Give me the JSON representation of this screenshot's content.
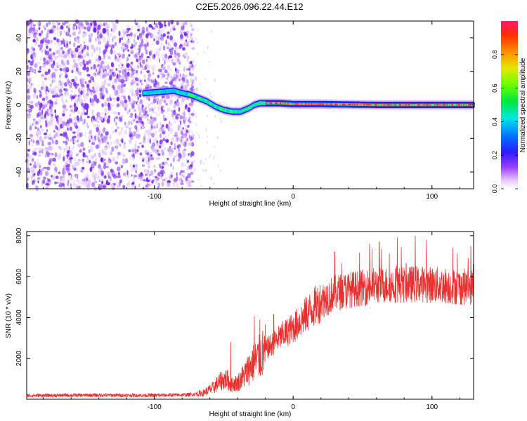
{
  "figure_title": "C2E5.2026.096.22.44.E12",
  "colors": {
    "snr_line": "#e8312f",
    "axis": "#000000"
  },
  "chart_data": [
    {
      "type": "heatmap",
      "title": "C2E5.2026.096.22.44.E12",
      "xlabel": "Height of straight line (km)",
      "ylabel": "Frequency (Hz)",
      "xlim": [
        -192,
        130
      ],
      "ylim": [
        -50,
        50
      ],
      "xticks": [
        -100,
        0,
        100
      ],
      "xtick_labels": [
        "-100",
        "0",
        "100"
      ],
      "yticks": [
        -40,
        -20,
        0,
        20,
        40
      ],
      "ytick_labels": [
        "-40",
        "-20",
        "0",
        "20",
        "40"
      ],
      "noise_region_x": [
        -192,
        -72
      ],
      "signal_track": {
        "x": [
          -108,
          -100,
          -92,
          -86,
          -80,
          -74,
          -68,
          -62,
          -56,
          -50,
          -44,
          -38,
          -32,
          -28,
          -24,
          -20,
          -10,
          0,
          20,
          60,
          100,
          130
        ],
        "frequency": [
          7,
          7.5,
          8,
          8.5,
          7,
          6,
          4,
          2,
          -1,
          -3,
          -4,
          -4,
          -2,
          0,
          1,
          1,
          1,
          0.5,
          0.5,
          0,
          0,
          0
        ]
      },
      "colorbar": {
        "label": "Normalized spectral amplitude",
        "range": [
          0,
          1
        ],
        "ticks": [
          0.0,
          0.2,
          0.4,
          0.6,
          0.8
        ],
        "tick_labels": [
          "0.0",
          "0.2",
          "0.4",
          "0.6",
          "0.8"
        ]
      }
    },
    {
      "type": "line",
      "xlabel": "Height of straight line (km)",
      "ylabel": "SNR (10 * v/v)",
      "xlim": [
        -192,
        130
      ],
      "ylim": [
        0,
        8200
      ],
      "xticks": [
        -100,
        0,
        100
      ],
      "xtick_labels": [
        "-100",
        "0",
        "100"
      ],
      "yticks": [
        2000,
        4000,
        6000,
        8000
      ],
      "ytick_labels": [
        "2000",
        "4000",
        "6000",
        "8000"
      ],
      "series": [
        {
          "name": "SNR",
          "x": [
            -192,
            -150,
            -100,
            -75,
            -65,
            -58,
            -52,
            -48,
            -45,
            -40,
            -35,
            -30,
            -25,
            -20,
            -15,
            -10,
            -5,
            0,
            5,
            10,
            15,
            20,
            25,
            30,
            40,
            50,
            60,
            70,
            80,
            90,
            100,
            110,
            120,
            130
          ],
          "y": [
            180,
            200,
            190,
            220,
            300,
            550,
            900,
            1000,
            700,
            800,
            1200,
            1700,
            2000,
            2400,
            2700,
            3000,
            3250,
            3500,
            3800,
            4200,
            4500,
            4800,
            5000,
            5200,
            5350,
            5450,
            5550,
            5600,
            5600,
            5650,
            5600,
            5550,
            5500,
            5500
          ],
          "peaks": [
            {
              "x": -45,
              "y": 2800
            },
            {
              "x": -28,
              "y": 4050
            },
            {
              "x": -24,
              "y": 3900
            },
            {
              "x": -14,
              "y": 4150
            },
            {
              "x": 30,
              "y": 7200
            },
            {
              "x": 55,
              "y": 7600
            },
            {
              "x": 62,
              "y": 7700
            },
            {
              "x": 75,
              "y": 7900
            },
            {
              "x": 88,
              "y": 8000
            },
            {
              "x": 96,
              "y": 7800
            },
            {
              "x": 115,
              "y": 7400
            },
            {
              "x": 128,
              "y": 7500
            }
          ]
        }
      ]
    }
  ]
}
